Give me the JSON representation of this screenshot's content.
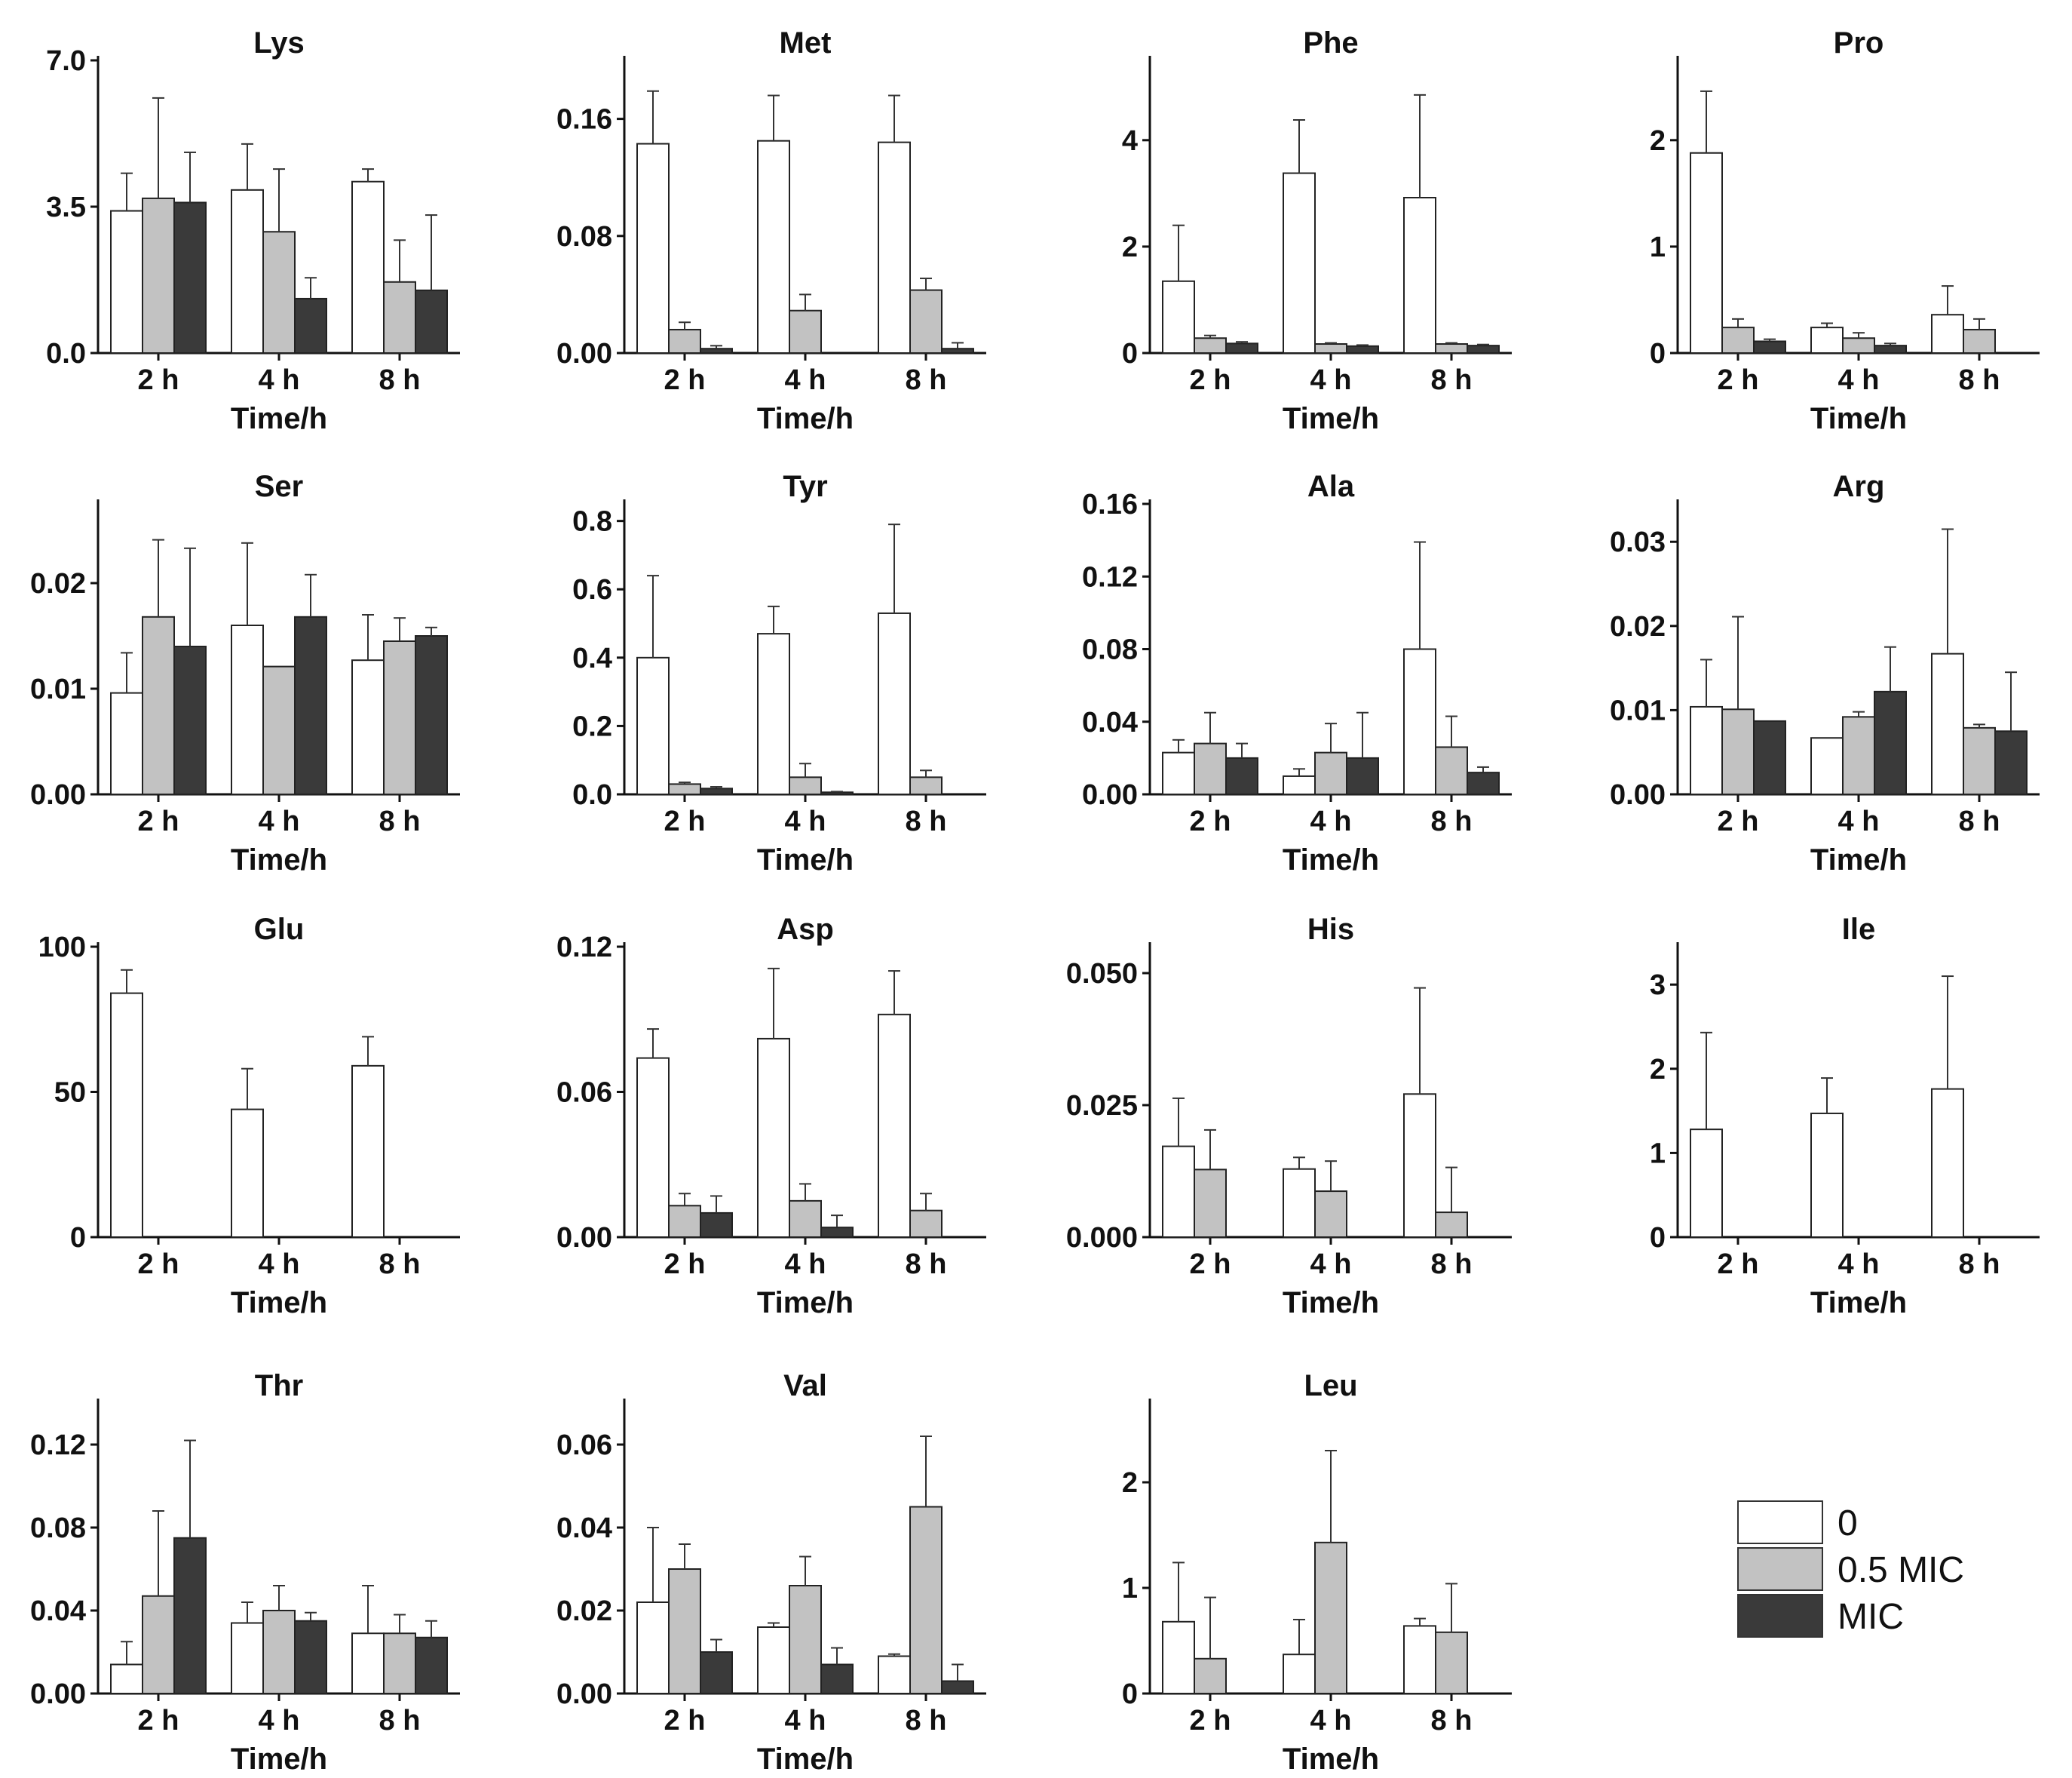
{
  "figure": {
    "x_ticks": [
      "2 h",
      "4 h",
      "8 h"
    ],
    "x_label": "Time/h",
    "legend": [
      {
        "label": "0",
        "color": "#ffffff"
      },
      {
        "label": "0.5 MIC",
        "color": "#c2c2c2"
      },
      {
        "label": "MIC",
        "color": "#3a3a3a"
      }
    ]
  },
  "chart_data": [
    {
      "type": "bar",
      "title": "Lys",
      "categories": [
        "2 h",
        "4 h",
        "8 h"
      ],
      "xlabel": "Time/h",
      "ylim": [
        0,
        7.0
      ],
      "yticks": [
        "0.0",
        "3.5",
        "7.0"
      ],
      "series": [
        {
          "name": "0",
          "values": [
            3.4,
            3.9,
            4.1
          ],
          "errors": [
            0.9,
            1.1,
            0.3
          ]
        },
        {
          "name": "0.5 MIC",
          "values": [
            3.7,
            2.9,
            1.7
          ],
          "errors": [
            2.4,
            1.5,
            1.0
          ]
        },
        {
          "name": "MIC",
          "values": [
            3.6,
            1.3,
            1.5
          ],
          "errors": [
            1.2,
            0.5,
            1.8
          ]
        }
      ]
    },
    {
      "type": "bar",
      "title": "Met",
      "categories": [
        "2 h",
        "4 h",
        "8 h"
      ],
      "xlabel": "Time/h",
      "ylim": [
        0,
        0.2
      ],
      "yticks": [
        "0.00",
        "0.08",
        "0.16"
      ],
      "series": [
        {
          "name": "0",
          "values": [
            0.143,
            0.145,
            0.144
          ],
          "errors": [
            0.036,
            0.031,
            0.032
          ]
        },
        {
          "name": "0.5 MIC",
          "values": [
            0.016,
            0.029,
            0.043
          ],
          "errors": [
            0.005,
            0.011,
            0.008
          ]
        },
        {
          "name": "MIC",
          "values": [
            0.003,
            0.0,
            0.003
          ],
          "errors": [
            0.002,
            0.0,
            0.004
          ]
        }
      ]
    },
    {
      "type": "bar",
      "title": "Phe",
      "categories": [
        "2 h",
        "4 h",
        "8 h"
      ],
      "xlabel": "Time/h",
      "ylim": [
        0,
        5.5
      ],
      "yticks": [
        "0",
        "2",
        "4"
      ],
      "series": [
        {
          "name": "0",
          "values": [
            1.35,
            3.38,
            2.92
          ],
          "errors": [
            1.05,
            1.0,
            1.93
          ]
        },
        {
          "name": "0.5 MIC",
          "values": [
            0.28,
            0.17,
            0.17
          ],
          "errors": [
            0.05,
            0.02,
            0.02
          ]
        },
        {
          "name": "MIC",
          "values": [
            0.18,
            0.13,
            0.14
          ],
          "errors": [
            0.03,
            0.02,
            0.02
          ]
        }
      ]
    },
    {
      "type": "bar",
      "title": "Pro",
      "categories": [
        "2 h",
        "4 h",
        "8 h"
      ],
      "xlabel": "Time/h",
      "ylim": [
        0,
        2.75
      ],
      "yticks": [
        "0",
        "1",
        "2"
      ],
      "series": [
        {
          "name": "0",
          "values": [
            1.88,
            0.24,
            0.36
          ],
          "errors": [
            0.58,
            0.04,
            0.27
          ]
        },
        {
          "name": "0.5 MIC",
          "values": [
            0.24,
            0.14,
            0.22
          ],
          "errors": [
            0.08,
            0.05,
            0.1
          ]
        },
        {
          "name": "MIC",
          "values": [
            0.11,
            0.07,
            0.0
          ],
          "errors": [
            0.02,
            0.02,
            0.0
          ]
        }
      ]
    },
    {
      "type": "bar",
      "title": "Ser",
      "categories": [
        "2 h",
        "4 h",
        "8 h"
      ],
      "xlabel": "Time/h",
      "ylim": [
        0,
        0.0275
      ],
      "yticks": [
        "0.00",
        "0.01",
        "0.02"
      ],
      "series": [
        {
          "name": "0",
          "values": [
            0.0096,
            0.016,
            0.0127
          ],
          "errors": [
            0.0038,
            0.0078,
            0.0043
          ]
        },
        {
          "name": "0.5 MIC",
          "values": [
            0.0168,
            0.0121,
            0.0145
          ],
          "errors": [
            0.0073,
            0.0,
            0.0022
          ]
        },
        {
          "name": "MIC",
          "values": [
            0.014,
            0.0168,
            0.015
          ],
          "errors": [
            0.0093,
            0.004,
            0.0008
          ]
        }
      ]
    },
    {
      "type": "bar",
      "title": "Tyr",
      "categories": [
        "2 h",
        "4 h",
        "8 h"
      ],
      "xlabel": "Time/h",
      "ylim": [
        0,
        0.85
      ],
      "yticks": [
        "0.0",
        "0.2",
        "0.4",
        "0.6",
        "0.8"
      ],
      "series": [
        {
          "name": "0",
          "values": [
            0.4,
            0.47,
            0.53
          ],
          "errors": [
            0.24,
            0.08,
            0.26
          ]
        },
        {
          "name": "0.5 MIC",
          "values": [
            0.03,
            0.05,
            0.05
          ],
          "errors": [
            0.005,
            0.04,
            0.02
          ]
        },
        {
          "name": "MIC",
          "values": [
            0.017,
            0.006,
            0.0
          ],
          "errors": [
            0.005,
            0.002,
            0.0
          ]
        }
      ]
    },
    {
      "type": "bar",
      "title": "Ala",
      "categories": [
        "2 h",
        "4 h",
        "8 h"
      ],
      "xlabel": "Time/h",
      "ylim": [
        0,
        0.16
      ],
      "yticks": [
        "0.00",
        "0.04",
        "0.08",
        "0.12",
        "0.16"
      ],
      "series": [
        {
          "name": "0",
          "values": [
            0.023,
            0.01,
            0.08
          ],
          "errors": [
            0.007,
            0.004,
            0.059
          ]
        },
        {
          "name": "0.5 MIC",
          "values": [
            0.028,
            0.023,
            0.026
          ],
          "errors": [
            0.017,
            0.016,
            0.017
          ]
        },
        {
          "name": "MIC",
          "values": [
            0.02,
            0.02,
            0.012
          ],
          "errors": [
            0.008,
            0.025,
            0.003
          ]
        }
      ]
    },
    {
      "type": "bar",
      "title": "Arg",
      "categories": [
        "2 h",
        "4 h",
        "8 h"
      ],
      "xlabel": "Time/h",
      "ylim": [
        0,
        0.0345
      ],
      "yticks": [
        "0.00",
        "0.01",
        "0.02",
        "0.03"
      ],
      "series": [
        {
          "name": "0",
          "values": [
            0.0104,
            0.0067,
            0.0167
          ],
          "errors": [
            0.0056,
            0.0,
            0.0148
          ]
        },
        {
          "name": "0.5 MIC",
          "values": [
            0.0101,
            0.0092,
            0.0079
          ],
          "errors": [
            0.011,
            0.0006,
            0.0004
          ]
        },
        {
          "name": "MIC",
          "values": [
            0.0087,
            0.0122,
            0.0075
          ],
          "errors": [
            0.0,
            0.0053,
            0.007
          ]
        }
      ]
    },
    {
      "type": "bar",
      "title": "Glu",
      "categories": [
        "2 h",
        "4 h",
        "8 h"
      ],
      "xlabel": "Time/h",
      "ylim": [
        0,
        100
      ],
      "yticks": [
        "0",
        "50",
        "100"
      ],
      "series": [
        {
          "name": "0",
          "values": [
            84,
            44,
            59
          ],
          "errors": [
            8,
            14,
            10
          ]
        },
        {
          "name": "0.5 MIC",
          "values": [
            0,
            0,
            0
          ],
          "errors": [
            0,
            0,
            0
          ]
        },
        {
          "name": "MIC",
          "values": [
            0,
            0,
            0
          ],
          "errors": [
            0,
            0,
            0
          ]
        }
      ]
    },
    {
      "type": "bar",
      "title": "Asp",
      "categories": [
        "2 h",
        "4 h",
        "8 h"
      ],
      "xlabel": "Time/h",
      "ylim": [
        0,
        0.12
      ],
      "yticks": [
        "0.00",
        "0.06",
        "0.12"
      ],
      "series": [
        {
          "name": "0",
          "values": [
            0.074,
            0.082,
            0.092
          ],
          "errors": [
            0.012,
            0.029,
            0.018
          ]
        },
        {
          "name": "0.5 MIC",
          "values": [
            0.013,
            0.015,
            0.011
          ],
          "errors": [
            0.005,
            0.007,
            0.007
          ]
        },
        {
          "name": "MIC",
          "values": [
            0.01,
            0.004,
            0.0
          ],
          "errors": [
            0.007,
            0.005,
            0.0
          ]
        }
      ]
    },
    {
      "type": "bar",
      "title": "His",
      "categories": [
        "2 h",
        "4 h",
        "8 h"
      ],
      "xlabel": "Time/h",
      "ylim": [
        0,
        0.055
      ],
      "yticks": [
        "0.000",
        "0.025",
        "0.050"
      ],
      "series": [
        {
          "name": "0",
          "values": [
            0.0172,
            0.0129,
            0.0271
          ],
          "errors": [
            0.0091,
            0.0022,
            0.0201
          ]
        },
        {
          "name": "0.5 MIC",
          "values": [
            0.0128,
            0.0087,
            0.0047
          ],
          "errors": [
            0.0075,
            0.0057,
            0.0085
          ]
        },
        {
          "name": "MIC",
          "values": [
            0,
            0,
            0
          ],
          "errors": [
            0,
            0,
            0
          ]
        }
      ]
    },
    {
      "type": "bar",
      "title": "Ile",
      "categories": [
        "2 h",
        "4 h",
        "8 h"
      ],
      "xlabel": "Time/h",
      "ylim": [
        0,
        3.45
      ],
      "yticks": [
        "0",
        "1",
        "2",
        "3"
      ],
      "series": [
        {
          "name": "0",
          "values": [
            1.28,
            1.47,
            1.76
          ],
          "errors": [
            1.15,
            0.42,
            1.34
          ]
        },
        {
          "name": "0.5 MIC",
          "values": [
            0,
            0,
            0
          ],
          "errors": [
            0,
            0,
            0
          ]
        },
        {
          "name": "MIC",
          "values": [
            0,
            0,
            0
          ],
          "errors": [
            0,
            0,
            0
          ]
        }
      ]
    },
    {
      "type": "bar",
      "title": "Thr",
      "categories": [
        "2 h",
        "4 h",
        "8 h"
      ],
      "xlabel": "Time/h",
      "ylim": [
        0,
        0.14
      ],
      "yticks": [
        "0.00",
        "0.04",
        "0.08",
        "0.12"
      ],
      "series": [
        {
          "name": "0",
          "values": [
            0.014,
            0.034,
            0.029
          ],
          "errors": [
            0.011,
            0.01,
            0.023
          ]
        },
        {
          "name": "0.5 MIC",
          "values": [
            0.047,
            0.04,
            0.029
          ],
          "errors": [
            0.041,
            0.012,
            0.009
          ]
        },
        {
          "name": "MIC",
          "values": [
            0.075,
            0.035,
            0.027
          ],
          "errors": [
            0.047,
            0.004,
            0.008
          ]
        }
      ]
    },
    {
      "type": "bar",
      "title": "Val",
      "categories": [
        "2 h",
        "4 h",
        "8 h"
      ],
      "xlabel": "Time/h",
      "ylim": [
        0,
        0.07
      ],
      "yticks": [
        "0.00",
        "0.02",
        "0.04",
        "0.06"
      ],
      "series": [
        {
          "name": "0",
          "values": [
            0.022,
            0.016,
            0.009
          ],
          "errors": [
            0.018,
            0.001,
            0.0005
          ]
        },
        {
          "name": "0.5 MIC",
          "values": [
            0.03,
            0.026,
            0.045
          ],
          "errors": [
            0.006,
            0.007,
            0.017
          ]
        },
        {
          "name": "MIC",
          "values": [
            0.01,
            0.007,
            0.003
          ],
          "errors": [
            0.003,
            0.004,
            0.004
          ]
        }
      ]
    },
    {
      "type": "bar",
      "title": "Leu",
      "categories": [
        "2 h",
        "4 h",
        "8 h"
      ],
      "xlabel": "Time/h",
      "ylim": [
        0,
        2.75
      ],
      "yticks": [
        "0",
        "1",
        "2"
      ],
      "series": [
        {
          "name": "0",
          "values": [
            0.68,
            0.37,
            0.64
          ],
          "errors": [
            0.56,
            0.33,
            0.07
          ]
        },
        {
          "name": "0.5 MIC",
          "values": [
            0.33,
            1.43,
            0.58
          ],
          "errors": [
            0.58,
            0.87,
            0.46
          ]
        },
        {
          "name": "MIC",
          "values": [
            0,
            0,
            0
          ],
          "errors": [
            0,
            0,
            0
          ]
        }
      ]
    }
  ]
}
